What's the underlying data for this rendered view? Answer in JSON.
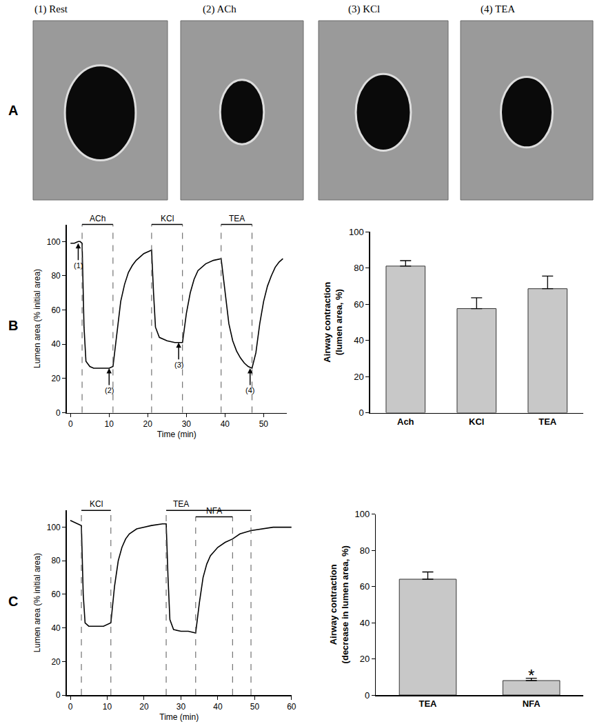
{
  "images": {
    "panel_label": "A",
    "labels": [
      "(1) Rest",
      "(2) ACh",
      "(3) KCl",
      "(4) TEA"
    ]
  },
  "chart_data": [
    {
      "type": "line",
      "panel_label": "B",
      "color": "#000000",
      "x": [
        0,
        1,
        2,
        2.5,
        3,
        3.5,
        4,
        5,
        6,
        8,
        10,
        11,
        12,
        13,
        14,
        15,
        16,
        17,
        18,
        19,
        20,
        21,
        21.5,
        22,
        23,
        25,
        27,
        29,
        30,
        31,
        32,
        33,
        35,
        37,
        39,
        40,
        41,
        42,
        43,
        44,
        45,
        46,
        47,
        48,
        49,
        50,
        51,
        52,
        53,
        54,
        55
      ],
      "values": [
        99,
        99,
        100,
        100,
        99,
        50,
        30,
        27,
        26,
        26,
        26,
        27,
        45,
        65,
        75,
        82,
        86,
        89,
        91,
        93,
        94,
        95,
        70,
        50,
        44,
        42,
        41,
        41,
        58,
        70,
        78,
        83,
        87,
        89,
        90,
        70,
        52,
        42,
        36,
        32,
        29,
        27,
        26,
        35,
        52,
        65,
        74,
        80,
        85,
        88,
        90
      ],
      "xlim": [
        -1,
        56
      ],
      "ylim": [
        0,
        110
      ],
      "xticks": [
        0,
        10,
        20,
        30,
        40,
        50
      ],
      "yticks": [
        0,
        20,
        40,
        60,
        80,
        100
      ],
      "x_label": "Time (min)",
      "y_label": "Lumen area (% initial area)",
      "treatments": [
        {
          "label": "ACh",
          "start": 3,
          "end": 11
        },
        {
          "label": "KCl",
          "start": 21,
          "end": 29
        },
        {
          "label": "TEA",
          "start": 39,
          "end": 47
        }
      ],
      "annotations": [
        {
          "text": "(1)",
          "x": 2,
          "y": 99
        },
        {
          "text": "(2)",
          "x": 10,
          "y": 26
        },
        {
          "text": "(3)",
          "x": 28,
          "y": 41
        },
        {
          "text": "(4)",
          "x": 46.5,
          "y": 26
        }
      ]
    },
    {
      "type": "bar",
      "panel_label": "B",
      "color": "#c8c8c8",
      "categories": [
        "Ach",
        "KCl",
        "TEA"
      ],
      "values": [
        81,
        57.5,
        68.5
      ],
      "errors": [
        3,
        6,
        7
      ],
      "ylim": [
        0,
        100
      ],
      "yticks": [
        0,
        20,
        40,
        60,
        80,
        100
      ],
      "y_label": "Airway contraction\n(lumen area, %)"
    },
    {
      "type": "line",
      "panel_label": "C",
      "color": "#000000",
      "x": [
        0,
        1,
        2,
        3,
        3.5,
        4,
        5,
        7,
        9,
        11,
        12,
        13,
        14,
        15,
        16,
        18,
        20,
        22,
        25,
        26,
        26.5,
        27,
        28,
        30,
        32,
        34,
        35,
        36,
        37,
        38,
        40,
        42,
        44,
        46,
        49,
        52,
        55,
        58,
        60
      ],
      "values": [
        104,
        103,
        102,
        101,
        60,
        43,
        41,
        41,
        41,
        43,
        65,
        80,
        88,
        93,
        96,
        99,
        100,
        101,
        102,
        102,
        70,
        45,
        39,
        38,
        38,
        37,
        55,
        70,
        78,
        83,
        88,
        91,
        93,
        96,
        98,
        99,
        100,
        100,
        100
      ],
      "xlim": [
        -1,
        60
      ],
      "ylim": [
        0,
        110
      ],
      "xticks": [
        0,
        10,
        20,
        30,
        40,
        50,
        60
      ],
      "yticks": [
        0,
        20,
        40,
        60,
        80,
        100
      ],
      "x_label": "Time (min)",
      "y_label": "Lumen area (% initial area)",
      "treatments": [
        {
          "label": "KCl",
          "start": 3,
          "end": 11
        },
        {
          "label": "TEA",
          "start": 26,
          "end": 49
        },
        {
          "label": "NFA",
          "start": 34,
          "end": 44
        }
      ]
    },
    {
      "type": "bar",
      "panel_label": "C",
      "color": "#c8c8c8",
      "categories": [
        "TEA",
        "NFA"
      ],
      "values": [
        64,
        8
      ],
      "errors": [
        4,
        1.3
      ],
      "ylim": [
        0,
        100
      ],
      "yticks": [
        0,
        20,
        40,
        60,
        80,
        100
      ],
      "y_label": "Airway contraction\n(decrease in lumen area, %)",
      "annotations": [
        {
          "text": "*",
          "category": "NFA",
          "y": 11
        }
      ]
    }
  ]
}
